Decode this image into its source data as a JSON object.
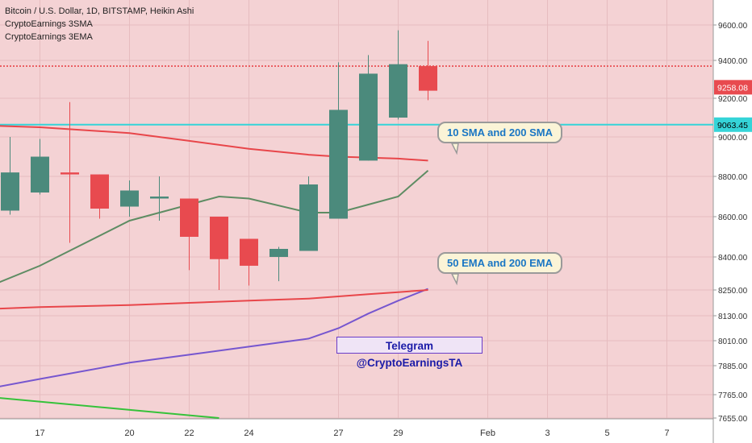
{
  "legend": {
    "title": "Bitcoin / U.S. Dollar, 1D, BITSTAMP, Heikin Ashi",
    "line2": "CryptoEarnings 3SMA",
    "line3": "CryptoEarnings 3EMA"
  },
  "callouts": {
    "sma": "10 SMA and 200 SMA",
    "ema": "50 EMA and 200 EMA"
  },
  "telegram": "Telegram @CryptoEarningsTA",
  "colors": {
    "background": "#f4d2d4",
    "up": "#4b8a7c",
    "down": "#e84a4f",
    "cyan_line": "#35d4d8",
    "red_dotted": "#e8464a",
    "sma10": "#5e8c63",
    "sma200": "#e8464a",
    "ema50": "#7656cf",
    "ema200": "#e8464a",
    "green_line": "#35c23a"
  },
  "chart_data": {
    "type": "candlestick",
    "style": "Heikin Ashi",
    "symbol": "Bitcoin / U.S. Dollar",
    "timeframe": "1D",
    "exchange": "BITSTAMP",
    "y_axis_ticks": [
      "9600.00",
      "9400.00",
      "9200.00",
      "9000.00",
      "8800.00",
      "8600.00",
      "8400.00",
      "8250.00",
      "8130.00",
      "8010.00",
      "7885.00",
      "7765.00",
      "7655.00"
    ],
    "x_axis_ticks": [
      "17",
      "20",
      "22",
      "24",
      "27",
      "29",
      "Feb",
      "3",
      "5",
      "7"
    ],
    "price_labels": [
      {
        "text": "9258.08",
        "value": 9258.08,
        "color": "#e84a4f"
      },
      {
        "text": "9063.45",
        "value": 9063.45,
        "color": "#35d4d8"
      }
    ],
    "horizontal_lines": [
      {
        "name": "cyan level",
        "value": 9063.45,
        "style": "solid"
      },
      {
        "name": "dotted red level",
        "value": 9370,
        "style": "dotted"
      }
    ],
    "candles": [
      {
        "day": "Jan 15",
        "open": 8740,
        "high": 8860,
        "low": 8510,
        "close": 8520
      },
      {
        "day": "Jan 16",
        "open": 8630,
        "high": 9000,
        "low": 8610,
        "close": 8820
      },
      {
        "day": "Jan 17",
        "open": 8720,
        "high": 8990,
        "low": 8710,
        "close": 8900
      },
      {
        "day": "Jan 18",
        "open": 8820,
        "high": 9180,
        "low": 8470,
        "close": 8810
      },
      {
        "day": "Jan 19",
        "open": 8810,
        "high": 8810,
        "low": 8590,
        "close": 8640
      },
      {
        "day": "Jan 20",
        "open": 8650,
        "high": 8780,
        "low": 8600,
        "close": 8730
      },
      {
        "day": "Jan 21",
        "open": 8690,
        "high": 8800,
        "low": 8580,
        "close": 8700
      },
      {
        "day": "Jan 22",
        "open": 8690,
        "high": 8690,
        "low": 8340,
        "close": 8500
      },
      {
        "day": "Jan 23",
        "open": 8600,
        "high": 8600,
        "low": 8250,
        "close": 8390
      },
      {
        "day": "Jan 24",
        "open": 8490,
        "high": 8490,
        "low": 8270,
        "close": 8360
      },
      {
        "day": "Jan 25",
        "open": 8400,
        "high": 8450,
        "low": 8290,
        "close": 8440
      },
      {
        "day": "Jan 26",
        "open": 8430,
        "high": 8800,
        "low": 8430,
        "close": 8760
      },
      {
        "day": "Jan 27",
        "open": 8590,
        "high": 9390,
        "low": 8590,
        "close": 9140
      },
      {
        "day": "Jan 28",
        "open": 8880,
        "high": 9430,
        "low": 8880,
        "close": 9330
      },
      {
        "day": "Jan 29",
        "open": 9100,
        "high": 9570,
        "low": 9090,
        "close": 9380
      },
      {
        "day": "Jan 30",
        "open": 9370,
        "high": 9510,
        "low": 9190,
        "close": 9240
      }
    ],
    "series": [
      {
        "name": "10 SMA",
        "points": [
          [
            "Jan 15",
            8250
          ],
          [
            "Jan 17",
            8360
          ],
          [
            "Jan 20",
            8580
          ],
          [
            "Jan 22",
            8660
          ],
          [
            "Jan 23",
            8700
          ],
          [
            "Jan 24",
            8690
          ],
          [
            "Jan 26",
            8620
          ],
          [
            "Jan 27",
            8620
          ],
          [
            "Jan 28",
            8660
          ],
          [
            "Jan 29",
            8700
          ],
          [
            "Jan 30",
            8830
          ]
        ]
      },
      {
        "name": "200 SMA",
        "points": [
          [
            "Jan 15",
            9060
          ],
          [
            "Jan 17",
            9050
          ],
          [
            "Jan 20",
            9020
          ],
          [
            "Jan 22",
            8980
          ],
          [
            "Jan 24",
            8940
          ],
          [
            "Jan 26",
            8910
          ],
          [
            "Jan 27",
            8900
          ],
          [
            "Jan 29",
            8890
          ],
          [
            "Jan 30",
            8880
          ]
        ]
      },
      {
        "name": "50 EMA",
        "points": [
          [
            "Jan 14",
            7760
          ],
          [
            "Jan 17",
            7830
          ],
          [
            "Jan 20",
            7900
          ],
          [
            "Jan 22",
            7940
          ],
          [
            "Jan 24",
            7980
          ],
          [
            "Jan 26",
            8020
          ],
          [
            "Jan 27",
            8070
          ],
          [
            "Jan 28",
            8140
          ],
          [
            "Jan 29",
            8200
          ],
          [
            "Jan 30",
            8255
          ]
        ]
      },
      {
        "name": "200 EMA",
        "points": [
          [
            "Jan 15",
            8160
          ],
          [
            "Jan 17",
            8170
          ],
          [
            "Jan 20",
            8180
          ],
          [
            "Jan 22",
            8190
          ],
          [
            "Jan 24",
            8200
          ],
          [
            "Jan 26",
            8210
          ],
          [
            "Jan 27",
            8220
          ],
          [
            "Jan 28",
            8230
          ],
          [
            "Jan 29",
            8240
          ],
          [
            "Jan 30",
            8250
          ]
        ]
      },
      {
        "name": "green line",
        "points": [
          [
            "Jan 14",
            7770
          ],
          [
            "Jan 23",
            7655
          ]
        ]
      }
    ]
  }
}
